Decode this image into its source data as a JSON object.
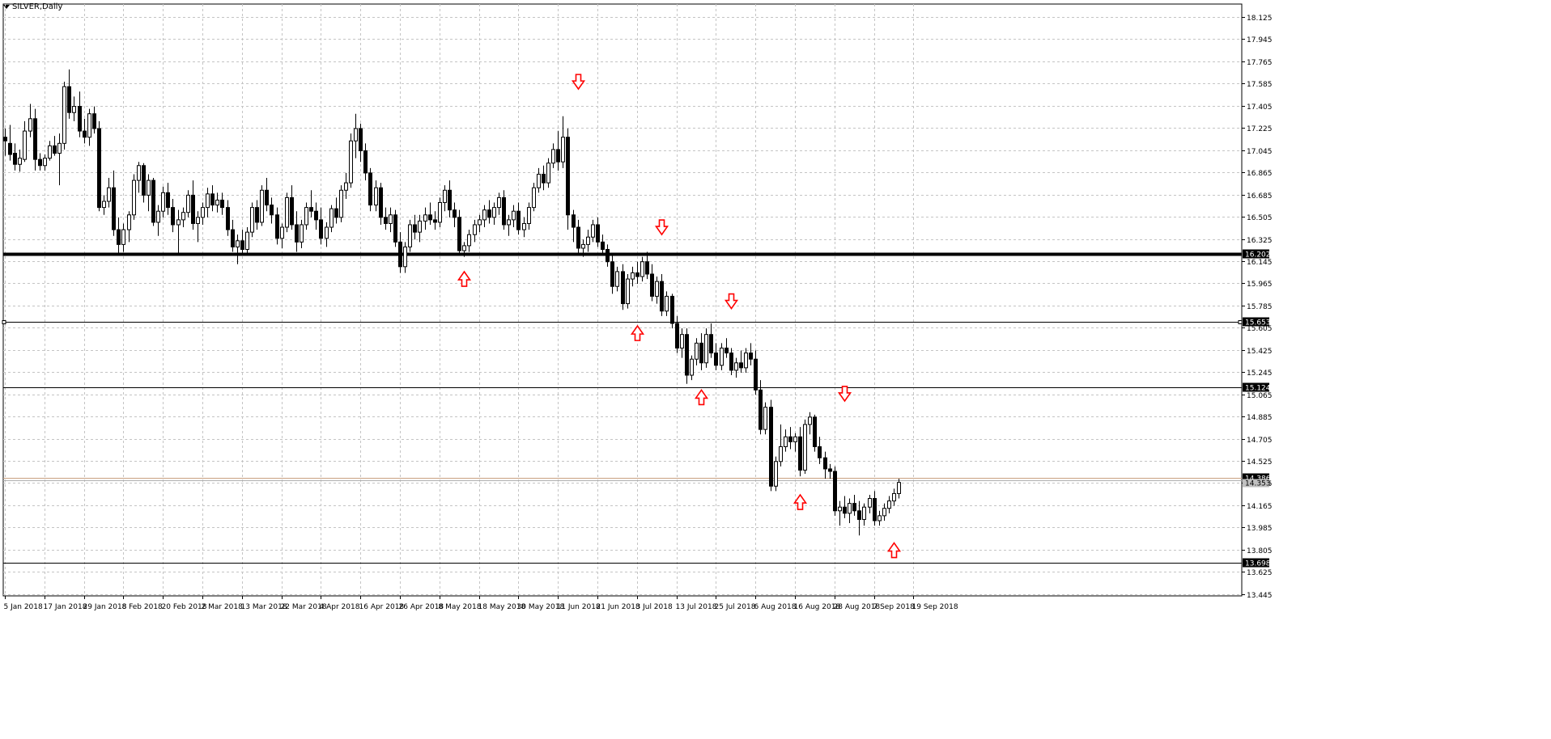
{
  "chart_data": {
    "type": "candlestick",
    "title": "SILVER,Daily",
    "ylim": [
      13.43,
      18.23
    ],
    "grid": true,
    "y_ticks": [
      "18.125",
      "17.945",
      "17.765",
      "17.585",
      "17.405",
      "17.225",
      "17.045",
      "16.865",
      "16.685",
      "16.505",
      "16.325",
      "16.145",
      "15.965",
      "15.785",
      "15.605",
      "15.425",
      "15.245",
      "15.065",
      "14.885",
      "14.705",
      "14.525",
      "14.345",
      "14.165",
      "13.985",
      "13.805",
      "13.625",
      "13.445"
    ],
    "x_ticks": [
      "5 Jan 2018",
      "17 Jan 2018",
      "29 Jan 2018",
      "8 Feb 2018",
      "20 Feb 2018",
      "2 Mar 2018",
      "13 Mar 2018",
      "22 Mar 2018",
      "4 Apr 2018",
      "16 Apr 2018",
      "26 Apr 2018",
      "8 May 2018",
      "18 May 2018",
      "30 May 2018",
      "11 Jun 2018",
      "21 Jun 2018",
      "3 Jul 2018",
      "13 Jul 2018",
      "25 Jul 2018",
      "6 Aug 2018",
      "16 Aug 2018",
      "28 Aug 2018",
      "7 Sep 2018",
      "19 Sep 2018"
    ],
    "x_tick_bar_index": [
      0,
      8,
      16,
      24,
      32,
      40,
      48,
      56,
      64,
      72,
      80,
      88,
      96,
      104,
      112,
      120,
      128,
      136,
      144,
      152,
      160,
      168,
      176,
      184
    ],
    "horizontal_lines": [
      {
        "value": 16.202,
        "label": "16.202",
        "style": "thick",
        "color": "#000000"
      },
      {
        "value": 15.653,
        "label": "15.653",
        "style": "thin",
        "color": "#000000"
      },
      {
        "value": 15.124,
        "label": "15.124",
        "style": "thin",
        "color": "#000000"
      },
      {
        "value": 14.386,
        "label": "14.386",
        "style": "bid",
        "color": "#c8a080"
      },
      {
        "value": 13.698,
        "label": "13.698",
        "style": "thin",
        "color": "#000000"
      }
    ],
    "ask_price": "14.353",
    "arrow_color": "#ff0000",
    "arrows": [
      {
        "bar": 116,
        "dir": "down",
        "price": 17.58
      },
      {
        "bar": 93,
        "dir": "up",
        "price": 16.02
      },
      {
        "bar": 133,
        "dir": "down",
        "price": 16.4
      },
      {
        "bar": 128,
        "dir": "up",
        "price": 15.58
      },
      {
        "bar": 147,
        "dir": "down",
        "price": 15.8
      },
      {
        "bar": 141,
        "dir": "up",
        "price": 15.06
      },
      {
        "bar": 170,
        "dir": "down",
        "price": 15.05
      },
      {
        "bar": 161,
        "dir": "up",
        "price": 14.21
      },
      {
        "bar": 180,
        "dir": "up",
        "price": 13.82
      }
    ],
    "ohlc": [
      [
        17.15,
        17.22,
        17.0,
        17.12
      ],
      [
        17.1,
        17.25,
        16.96,
        17.01
      ],
      [
        17.02,
        17.1,
        16.88,
        16.93
      ],
      [
        16.93,
        17.05,
        16.87,
        16.98
      ],
      [
        16.97,
        17.28,
        16.95,
        17.2
      ],
      [
        17.2,
        17.42,
        17.15,
        17.3
      ],
      [
        17.3,
        17.38,
        16.88,
        16.97
      ],
      [
        16.97,
        17.02,
        16.88,
        16.92
      ],
      [
        16.92,
        17.01,
        16.88,
        16.98
      ],
      [
        16.98,
        17.12,
        16.96,
        17.08
      ],
      [
        17.08,
        17.16,
        17.0,
        17.02
      ],
      [
        17.02,
        17.18,
        16.76,
        17.1
      ],
      [
        17.1,
        17.6,
        17.05,
        17.56
      ],
      [
        17.56,
        17.7,
        17.3,
        17.35
      ],
      [
        17.35,
        17.48,
        17.28,
        17.4
      ],
      [
        17.4,
        17.52,
        17.15,
        17.2
      ],
      [
        17.2,
        17.3,
        17.1,
        17.15
      ],
      [
        17.15,
        17.38,
        17.08,
        17.34
      ],
      [
        17.34,
        17.4,
        17.18,
        17.22
      ],
      [
        17.22,
        17.28,
        16.55,
        16.58
      ],
      [
        16.58,
        16.68,
        16.52,
        16.63
      ],
      [
        16.63,
        16.82,
        16.58,
        16.74
      ],
      [
        16.74,
        16.88,
        16.35,
        16.4
      ],
      [
        16.4,
        16.5,
        16.2,
        16.28
      ],
      [
        16.28,
        16.45,
        16.22,
        16.4
      ],
      [
        16.4,
        16.55,
        16.3,
        16.52
      ],
      [
        16.52,
        16.85,
        16.48,
        16.8
      ],
      [
        16.8,
        16.95,
        16.7,
        16.92
      ],
      [
        16.92,
        16.94,
        16.62,
        16.68
      ],
      [
        16.68,
        16.85,
        16.55,
        16.8
      ],
      [
        16.8,
        16.82,
        16.43,
        16.46
      ],
      [
        16.46,
        16.6,
        16.35,
        16.55
      ],
      [
        16.55,
        16.75,
        16.5,
        16.7
      ],
      [
        16.7,
        16.78,
        16.52,
        16.58
      ],
      [
        16.58,
        16.65,
        16.38,
        16.44
      ],
      [
        16.44,
        16.56,
        16.2,
        16.48
      ],
      [
        16.48,
        16.58,
        16.42,
        16.54
      ],
      [
        16.54,
        16.72,
        16.5,
        16.68
      ],
      [
        16.68,
        16.8,
        16.4,
        16.45
      ],
      [
        16.45,
        16.55,
        16.3,
        16.5
      ],
      [
        16.5,
        16.62,
        16.44,
        16.58
      ],
      [
        16.58,
        16.74,
        16.5,
        16.69
      ],
      [
        16.69,
        16.76,
        16.55,
        16.6
      ],
      [
        16.6,
        16.7,
        16.54,
        16.64
      ],
      [
        16.64,
        16.7,
        16.52,
        16.58
      ],
      [
        16.58,
        16.64,
        16.35,
        16.4
      ],
      [
        16.4,
        16.48,
        16.22,
        16.26
      ],
      [
        16.26,
        16.36,
        16.12,
        16.31
      ],
      [
        16.31,
        16.4,
        16.2,
        16.24
      ],
      [
        16.24,
        16.42,
        16.2,
        16.38
      ],
      [
        16.38,
        16.62,
        16.34,
        16.58
      ],
      [
        16.58,
        16.64,
        16.4,
        16.46
      ],
      [
        16.46,
        16.76,
        16.43,
        16.72
      ],
      [
        16.72,
        16.82,
        16.55,
        16.6
      ],
      [
        16.6,
        16.66,
        16.45,
        16.52
      ],
      [
        16.52,
        16.58,
        16.28,
        16.33
      ],
      [
        16.33,
        16.45,
        16.25,
        16.42
      ],
      [
        16.42,
        16.7,
        16.38,
        16.66
      ],
      [
        16.66,
        16.76,
        16.4,
        16.44
      ],
      [
        16.44,
        16.55,
        16.22,
        16.3
      ],
      [
        16.3,
        16.48,
        16.25,
        16.44
      ],
      [
        16.44,
        16.62,
        16.4,
        16.58
      ],
      [
        16.58,
        16.72,
        16.5,
        16.55
      ],
      [
        16.55,
        16.62,
        16.4,
        16.48
      ],
      [
        16.48,
        16.58,
        16.28,
        16.33
      ],
      [
        16.33,
        16.46,
        16.26,
        16.42
      ],
      [
        16.42,
        16.6,
        16.38,
        16.57
      ],
      [
        16.57,
        16.66,
        16.45,
        16.5
      ],
      [
        16.5,
        16.76,
        16.46,
        16.72
      ],
      [
        16.72,
        16.86,
        16.65,
        16.78
      ],
      [
        16.78,
        17.18,
        16.74,
        17.12
      ],
      [
        17.12,
        17.34,
        16.98,
        17.22
      ],
      [
        17.22,
        17.26,
        16.95,
        17.04
      ],
      [
        17.04,
        17.1,
        16.8,
        16.86
      ],
      [
        16.86,
        16.9,
        16.55,
        16.6
      ],
      [
        16.6,
        16.8,
        16.55,
        16.74
      ],
      [
        16.74,
        16.78,
        16.44,
        16.5
      ],
      [
        16.5,
        16.58,
        16.4,
        16.45
      ],
      [
        16.45,
        16.58,
        16.38,
        16.52
      ],
      [
        16.52,
        16.56,
        16.26,
        16.3
      ],
      [
        16.3,
        16.38,
        16.05,
        16.1
      ],
      [
        16.1,
        16.3,
        16.05,
        16.26
      ],
      [
        16.26,
        16.48,
        16.22,
        16.44
      ],
      [
        16.44,
        16.52,
        16.32,
        16.38
      ],
      [
        16.38,
        16.52,
        16.3,
        16.47
      ],
      [
        16.47,
        16.58,
        16.4,
        16.52
      ],
      [
        16.52,
        16.62,
        16.44,
        16.48
      ],
      [
        16.48,
        16.55,
        16.4,
        16.46
      ],
      [
        16.46,
        16.66,
        16.42,
        16.62
      ],
      [
        16.62,
        16.76,
        16.55,
        16.72
      ],
      [
        16.72,
        16.8,
        16.5,
        16.56
      ],
      [
        16.56,
        16.62,
        16.42,
        16.5
      ],
      [
        16.5,
        16.56,
        16.2,
        16.23
      ],
      [
        16.23,
        16.3,
        16.18,
        16.27
      ],
      [
        16.27,
        16.4,
        16.22,
        16.36
      ],
      [
        16.36,
        16.48,
        16.3,
        16.44
      ],
      [
        16.44,
        16.52,
        16.38,
        16.48
      ],
      [
        16.48,
        16.6,
        16.42,
        16.56
      ],
      [
        16.56,
        16.64,
        16.45,
        16.5
      ],
      [
        16.5,
        16.62,
        16.44,
        16.58
      ],
      [
        16.58,
        16.7,
        16.52,
        16.66
      ],
      [
        16.66,
        16.72,
        16.4,
        16.44
      ],
      [
        16.44,
        16.52,
        16.35,
        16.48
      ],
      [
        16.48,
        16.6,
        16.42,
        16.55
      ],
      [
        16.55,
        16.62,
        16.36,
        16.4
      ],
      [
        16.4,
        16.5,
        16.34,
        16.45
      ],
      [
        16.45,
        16.62,
        16.4,
        16.58
      ],
      [
        16.58,
        16.78,
        16.55,
        16.74
      ],
      [
        16.74,
        16.9,
        16.7,
        16.85
      ],
      [
        16.85,
        16.92,
        16.72,
        16.78
      ],
      [
        16.78,
        16.98,
        16.74,
        16.94
      ],
      [
        16.94,
        17.1,
        16.9,
        17.05
      ],
      [
        17.05,
        17.2,
        16.88,
        16.95
      ],
      [
        16.95,
        17.32,
        16.9,
        17.15
      ],
      [
        17.15,
        17.22,
        16.4,
        16.52
      ],
      [
        16.52,
        16.56,
        16.3,
        16.42
      ],
      [
        16.42,
        16.48,
        16.2,
        16.25
      ],
      [
        16.25,
        16.32,
        16.18,
        16.28
      ],
      [
        16.28,
        16.4,
        16.22,
        16.34
      ],
      [
        16.34,
        16.48,
        16.3,
        16.44
      ],
      [
        16.44,
        16.5,
        16.26,
        16.3
      ],
      [
        16.3,
        16.36,
        16.2,
        16.24
      ],
      [
        16.24,
        16.28,
        16.1,
        16.14
      ],
      [
        16.14,
        16.2,
        15.88,
        15.94
      ],
      [
        15.94,
        16.1,
        15.9,
        16.06
      ],
      [
        16.06,
        16.12,
        15.75,
        15.8
      ],
      [
        15.8,
        16.04,
        15.76,
        16.0
      ],
      [
        16.0,
        16.1,
        15.94,
        16.05
      ],
      [
        16.05,
        16.14,
        15.96,
        16.02
      ],
      [
        16.02,
        16.18,
        15.98,
        16.14
      ],
      [
        16.14,
        16.22,
        16.0,
        16.04
      ],
      [
        16.04,
        16.12,
        15.82,
        15.86
      ],
      [
        15.86,
        16.02,
        15.8,
        15.98
      ],
      [
        15.98,
        16.04,
        15.7,
        15.74
      ],
      [
        15.74,
        15.9,
        15.7,
        15.86
      ],
      [
        15.86,
        15.88,
        15.6,
        15.64
      ],
      [
        15.64,
        15.7,
        15.4,
        15.44
      ],
      [
        15.44,
        15.6,
        15.36,
        15.55
      ],
      [
        15.55,
        15.6,
        15.15,
        15.22
      ],
      [
        15.22,
        15.38,
        15.18,
        15.35
      ],
      [
        15.35,
        15.52,
        15.3,
        15.48
      ],
      [
        15.48,
        15.56,
        15.26,
        15.32
      ],
      [
        15.32,
        15.6,
        15.28,
        15.55
      ],
      [
        15.55,
        15.64,
        15.36,
        15.4
      ],
      [
        15.4,
        15.48,
        15.26,
        15.3
      ],
      [
        15.3,
        15.48,
        15.26,
        15.44
      ],
      [
        15.44,
        15.52,
        15.36,
        15.4
      ],
      [
        15.4,
        15.44,
        15.22,
        15.26
      ],
      [
        15.26,
        15.36,
        15.2,
        15.32
      ],
      [
        15.32,
        15.42,
        15.24,
        15.28
      ],
      [
        15.28,
        15.44,
        15.24,
        15.4
      ],
      [
        15.4,
        15.48,
        15.3,
        15.35
      ],
      [
        15.35,
        15.42,
        15.06,
        15.1
      ],
      [
        15.1,
        15.18,
        14.74,
        14.78
      ],
      [
        14.78,
        15.0,
        14.74,
        14.96
      ],
      [
        14.96,
        15.02,
        14.28,
        14.32
      ],
      [
        14.32,
        14.56,
        14.28,
        14.52
      ],
      [
        14.52,
        14.82,
        14.48,
        14.64
      ],
      [
        14.64,
        14.78,
        14.6,
        14.72
      ],
      [
        14.72,
        14.8,
        14.62,
        14.68
      ],
      [
        14.68,
        14.75,
        14.6,
        14.72
      ],
      [
        14.72,
        14.8,
        14.4,
        14.45
      ],
      [
        14.45,
        14.86,
        14.42,
        14.82
      ],
      [
        14.82,
        14.92,
        14.74,
        14.88
      ],
      [
        14.88,
        14.9,
        14.6,
        14.64
      ],
      [
        14.64,
        14.72,
        14.5,
        14.55
      ],
      [
        14.55,
        14.6,
        14.38,
        14.46
      ],
      [
        14.46,
        14.5,
        14.38,
        14.44
      ],
      [
        14.44,
        14.48,
        14.08,
        14.12
      ],
      [
        14.12,
        14.2,
        14.0,
        14.15
      ],
      [
        14.15,
        14.24,
        14.06,
        14.1
      ],
      [
        14.1,
        14.22,
        14.02,
        14.18
      ],
      [
        14.18,
        14.25,
        14.08,
        14.12
      ],
      [
        14.12,
        14.2,
        13.92,
        14.05
      ],
      [
        14.05,
        14.18,
        14.0,
        14.15
      ],
      [
        14.15,
        14.25,
        14.1,
        14.22
      ],
      [
        14.22,
        14.28,
        14.0,
        14.04
      ],
      [
        14.04,
        14.12,
        14.0,
        14.08
      ],
      [
        14.08,
        14.18,
        14.04,
        14.14
      ],
      [
        14.14,
        14.24,
        14.1,
        14.2
      ],
      [
        14.2,
        14.3,
        14.16,
        14.26
      ],
      [
        14.26,
        14.38,
        14.22,
        14.35
      ]
    ]
  }
}
